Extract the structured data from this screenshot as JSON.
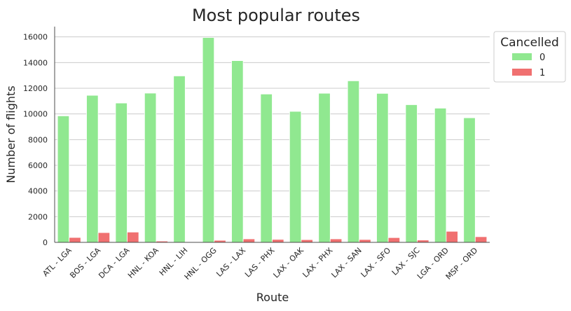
{
  "chart_data": {
    "type": "bar",
    "title": "Most popular routes",
    "xlabel": "Route",
    "ylabel": "Number of flights",
    "categories": [
      "ATL - LGA",
      "BOS - LGA",
      "DCA - LGA",
      "HNL - KOA",
      "HNL - LIH",
      "HNL - OGG",
      "LAS - LAX",
      "LAS - PHX",
      "LAX - OAK",
      "LAX - PHX",
      "LAX - SAN",
      "LAX - SFO",
      "LAX - SJC",
      "LGA - ORD",
      "MSP - ORD"
    ],
    "series": [
      {
        "name": "0",
        "color": "#90e890",
        "values": [
          9850,
          11450,
          10850,
          11620,
          12960,
          15950,
          14150,
          11550,
          10200,
          11610,
          12580,
          11600,
          10720,
          10450,
          9700
        ]
      },
      {
        "name": "1",
        "color": "#f07070",
        "values": [
          380,
          760,
          800,
          100,
          20,
          160,
          270,
          230,
          210,
          270,
          220,
          370,
          180,
          860,
          440
        ]
      }
    ],
    "ylim": [
      0,
      16800
    ],
    "yticks": [
      0,
      2000,
      4000,
      6000,
      8000,
      10000,
      12000,
      14000,
      16000
    ],
    "grid": true,
    "legend": {
      "title": "Cancelled",
      "placement": "outside-top-right"
    }
  }
}
